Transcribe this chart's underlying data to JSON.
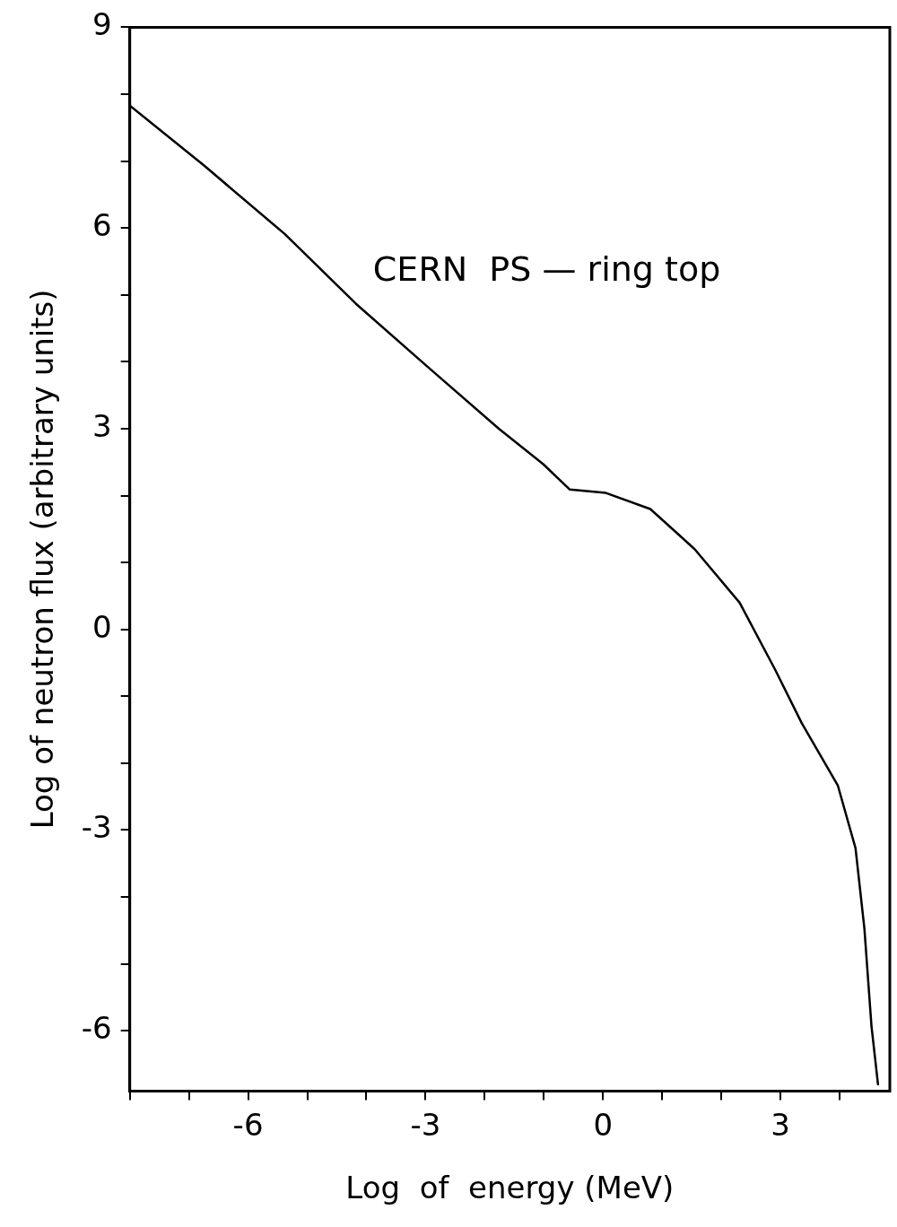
{
  "chart_data": {
    "type": "line",
    "xlabel": "Log  of  energy (MeV)",
    "ylabel": "Log of neutron flux (arbitrary units)",
    "annotations": [
      "CERN  PS — ring top"
    ],
    "series": [
      {
        "color": "#000000",
        "x": [
          -8,
          -6.74,
          -5.38,
          -4.18,
          -2.97,
          -1.76,
          -1.01,
          -0.56,
          0.05,
          0.8,
          1.55,
          2.31,
          2.91,
          3.36,
          3.97,
          4.27,
          4.42,
          4.54,
          4.65
        ],
        "values": [
          7.83,
          6.93,
          5.91,
          4.87,
          3.93,
          3.0,
          2.47,
          2.09,
          2.04,
          1.8,
          1.2,
          0.4,
          -0.6,
          -1.4,
          -2.33,
          -3.27,
          -4.47,
          -5.93,
          -6.8
        ]
      }
    ],
    "xlim": [
      -8,
      4.85
    ],
    "ylim": [
      -6.9,
      9
    ],
    "xticks": [
      {
        "value": -8,
        "label": null
      },
      {
        "value": -7,
        "label": null
      },
      -6,
      {
        "value": -5,
        "label": null
      },
      {
        "value": -4,
        "label": null
      },
      -3,
      {
        "value": -2,
        "label": null
      },
      {
        "value": -1,
        "label": null
      },
      0,
      {
        "value": 1,
        "label": null
      },
      {
        "value": 2,
        "label": null
      },
      3,
      {
        "value": 4,
        "label": null
      }
    ],
    "yticks": [
      -6,
      {
        "value": -5,
        "label": null
      },
      {
        "value": -4,
        "label": null
      },
      -3,
      {
        "value": -2,
        "label": null
      },
      {
        "value": -1,
        "label": null
      },
      0,
      {
        "value": 1,
        "label": null
      },
      {
        "value": 2,
        "label": null
      },
      3,
      {
        "value": 4,
        "label": null
      },
      {
        "value": 5,
        "label": null
      },
      6,
      {
        "value": 7,
        "label": null
      },
      {
        "value": 8,
        "label": null
      },
      9
    ],
    "grid": false,
    "legend": false,
    "marker": "none",
    "line_style": "solid"
  }
}
